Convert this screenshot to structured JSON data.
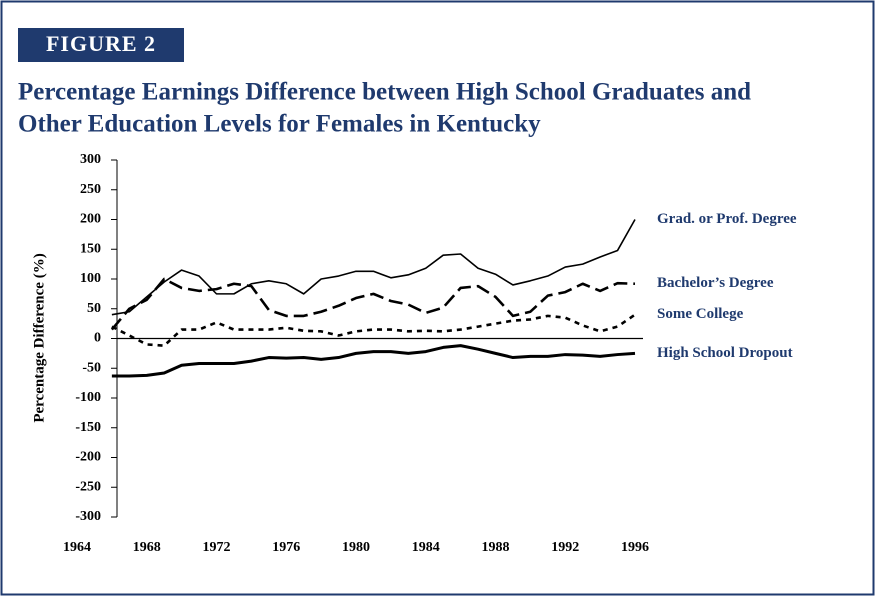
{
  "figure_label": "FIGURE 2",
  "chart_data": {
    "type": "line",
    "title": [
      "Percentage Earnings Difference between High School Graduates and",
      "Other Education Levels for Females in Kentucky"
    ],
    "y_label": "Percentage Difference (%)",
    "x": [
      1966,
      1967,
      1968,
      1969,
      1970,
      1971,
      1972,
      1973,
      1974,
      1975,
      1976,
      1977,
      1978,
      1979,
      1980,
      1981,
      1982,
      1983,
      1984,
      1985,
      1986,
      1987,
      1988,
      1989,
      1990,
      1991,
      1992,
      1993,
      1994,
      1995,
      1996
    ],
    "xlim": [
      1964,
      1996
    ],
    "xticks": [
      1964,
      1968,
      1972,
      1976,
      1980,
      1984,
      1988,
      1992,
      1996
    ],
    "ylim": [
      -300,
      300
    ],
    "yticks": [
      300,
      250,
      200,
      150,
      100,
      50,
      0,
      -50,
      -100,
      -150,
      -200,
      -250,
      -300
    ],
    "series": [
      {
        "name": "Grad. or Prof. Degree",
        "color": "#000000",
        "dash": "none",
        "width": 1.6,
        "values": [
          40,
          45,
          70,
          95,
          115,
          105,
          75,
          75,
          92,
          97,
          92,
          75,
          100,
          105,
          113,
          113,
          102,
          107,
          118,
          140,
          142,
          118,
          108,
          90,
          97,
          105,
          120,
          125,
          137,
          148,
          200
        ]
      },
      {
        "name": "Bachelor’s Degree",
        "color": "#000000",
        "dash": "14,6",
        "width": 2.6,
        "values": [
          15,
          50,
          65,
          100,
          85,
          80,
          83,
          92,
          88,
          48,
          38,
          38,
          45,
          55,
          68,
          75,
          63,
          57,
          43,
          52,
          85,
          88,
          70,
          38,
          45,
          72,
          78,
          92,
          80,
          93,
          92
        ]
      },
      {
        "name": "Some College",
        "color": "#000000",
        "dash": "5,5",
        "width": 2.6,
        "values": [
          20,
          5,
          -10,
          -12,
          15,
          15,
          27,
          15,
          15,
          15,
          18,
          13,
          12,
          5,
          12,
          15,
          15,
          12,
          13,
          12,
          15,
          20,
          25,
          30,
          32,
          38,
          35,
          22,
          12,
          20,
          40
        ]
      },
      {
        "name": "High School Dropout",
        "color": "#000000",
        "dash": "none",
        "width": 3,
        "values": [
          -63,
          -63,
          -62,
          -58,
          -45,
          -42,
          -42,
          -42,
          -38,
          -32,
          -33,
          -32,
          -35,
          -32,
          -25,
          -22,
          -22,
          -25,
          -22,
          -15,
          -12,
          -18,
          -25,
          -32,
          -30,
          -30,
          -27,
          -28,
          -30,
          -27,
          -25
        ]
      }
    ]
  }
}
